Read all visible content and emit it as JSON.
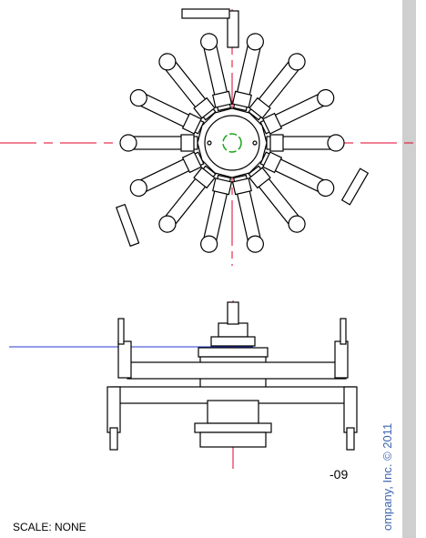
{
  "drawing": {
    "part_number": "-09",
    "scale": "SCALE: NONE",
    "copyright": "ompany, Inc. © 2011"
  }
}
